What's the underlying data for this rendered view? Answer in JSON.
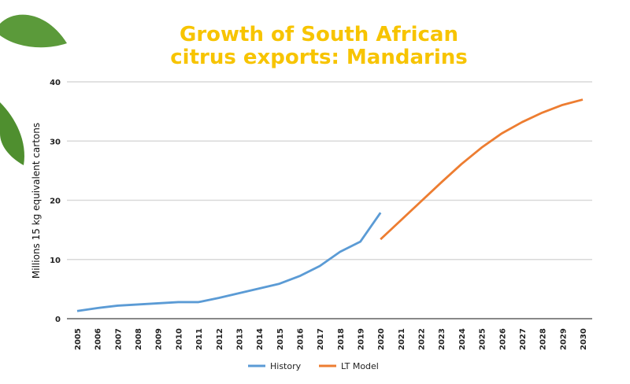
{
  "chart_data": {
    "type": "line",
    "title": "Growth of South African citrus exports: Mandarins",
    "title_lines": [
      "Growth of South African",
      "citrus exports: Mandarins"
    ],
    "xlabel": "",
    "ylabel": "Millions 15 kg equivalent cartons",
    "ylim": [
      0,
      40
    ],
    "yticks": [
      0,
      10,
      20,
      30,
      40
    ],
    "x": [
      2005,
      2006,
      2007,
      2008,
      2009,
      2010,
      2011,
      2012,
      2013,
      2014,
      2015,
      2016,
      2017,
      2018,
      2019,
      2020,
      2021,
      2022,
      2023,
      2024,
      2025,
      2026,
      2027,
      2028,
      2029,
      2030
    ],
    "grid": true,
    "legend": "bottom",
    "series": [
      {
        "name": "History",
        "color": "#5B9BD5",
        "x": [
          2005,
          2006,
          2007,
          2008,
          2009,
          2010,
          2011,
          2012,
          2013,
          2014,
          2015,
          2016,
          2017,
          2018,
          2019,
          2020
        ],
        "values": [
          1.3,
          1.8,
          2.2,
          2.4,
          2.6,
          2.8,
          2.8,
          3.5,
          4.3,
          5.1,
          5.9,
          7.2,
          8.9,
          11.3,
          13.0,
          17.9
        ]
      },
      {
        "name": "LT Model",
        "color": "#ED7D31",
        "x": [
          2020,
          2021,
          2022,
          2023,
          2024,
          2025,
          2026,
          2027,
          2028,
          2029,
          2030
        ],
        "values": [
          13.4,
          16.6,
          19.8,
          23.0,
          26.1,
          28.9,
          31.3,
          33.2,
          34.8,
          36.1,
          37.0
        ]
      }
    ]
  }
}
